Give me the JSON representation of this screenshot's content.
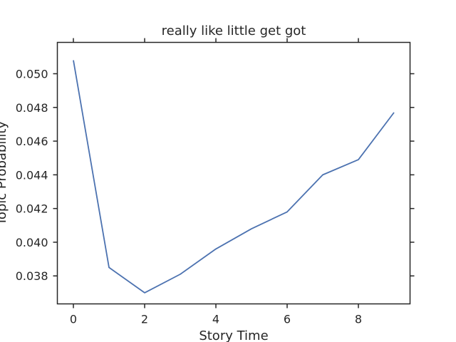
{
  "chart_data": {
    "type": "line",
    "title": "really like little get got",
    "xlabel": "Story Time",
    "ylabel": "Topic Probability",
    "x": [
      0,
      1,
      2,
      3,
      4,
      5,
      6,
      7,
      8,
      9
    ],
    "series": [
      {
        "values": [
          0.0508,
          0.0385,
          0.037,
          0.0381,
          0.0396,
          0.0408,
          0.0418,
          0.044,
          0.0449,
          0.0477
        ],
        "color": "#4c72b0"
      }
    ],
    "xlim": [
      -0.45,
      9.45
    ],
    "ylim": [
      0.03634,
      0.05186
    ],
    "xticks": [
      0,
      2,
      4,
      6,
      8
    ],
    "xtick_labels": [
      "0",
      "2",
      "4",
      "6",
      "8"
    ],
    "yticks": [
      0.038,
      0.04,
      0.042,
      0.044,
      0.046,
      0.048,
      0.05
    ],
    "ytick_labels": [
      "0.038",
      "0.040",
      "0.042",
      "0.044",
      "0.046",
      "0.048",
      "0.050"
    ],
    "grid": false,
    "ticks_on_all_sides": true
  }
}
